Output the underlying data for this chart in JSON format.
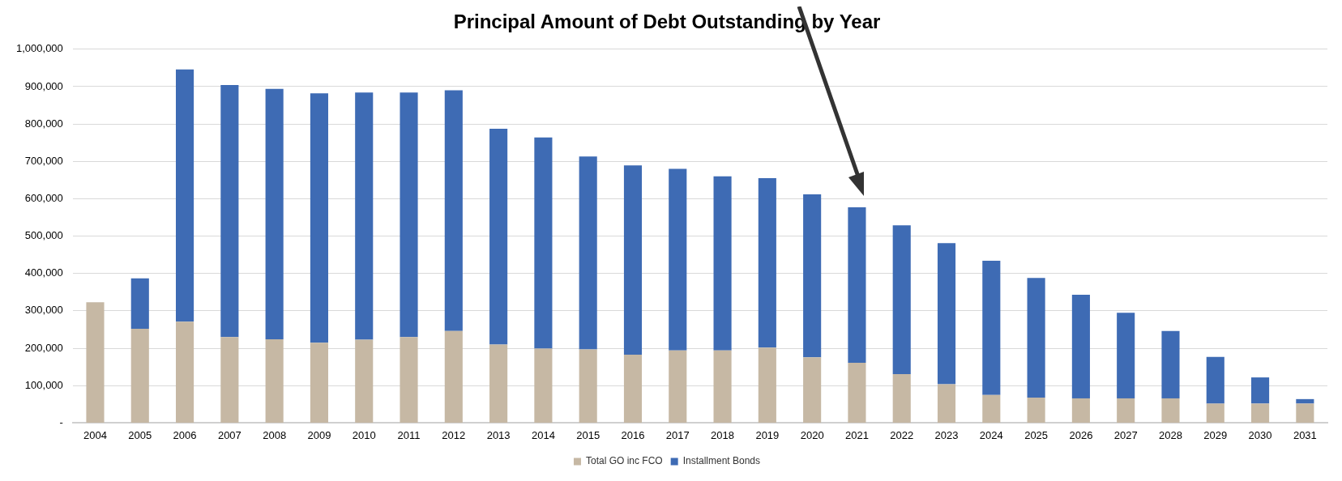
{
  "chart_data": {
    "type": "bar",
    "title": "Principal Amount of Debt Outstanding by Year",
    "categories": [
      "2004",
      "2005",
      "2006",
      "2007",
      "2008",
      "2009",
      "2010",
      "2011",
      "2012",
      "2013",
      "2014",
      "2015",
      "2016",
      "2017",
      "2018",
      "2019",
      "2020",
      "2021",
      "2022",
      "2023",
      "2024",
      "2025",
      "2026",
      "2027",
      "2028",
      "2029",
      "2030",
      "2031"
    ],
    "series": [
      {
        "name": "Total GO inc FCO",
        "color": "#c6b8a4",
        "values": [
          323000,
          252000,
          271000,
          230000,
          224000,
          215000,
          223000,
          230000,
          246000,
          210000,
          199000,
          197000,
          183000,
          194000,
          194000,
          202000,
          176000,
          161000,
          131000,
          104000,
          75000,
          68000,
          66000,
          66000,
          66000,
          52000,
          52000,
          52000
        ]
      },
      {
        "name": "Installment Bonds",
        "color": "#3e6bb4",
        "values": [
          0,
          135000,
          675000,
          674000,
          670000,
          667000,
          661000,
          654000,
          644000,
          577000,
          565000,
          516000,
          506000,
          486000,
          466000,
          453000,
          436000,
          416000,
          398000,
          377000,
          359000,
          320000,
          277000,
          229000,
          180000,
          125000,
          70000,
          12000
        ]
      }
    ],
    "stacked": true,
    "ylim": [
      0,
      1000000
    ],
    "yticks": [
      {
        "value": 0,
        "label": "-"
      },
      {
        "value": 100000,
        "label": "100,000"
      },
      {
        "value": 200000,
        "label": "200,000"
      },
      {
        "value": 300000,
        "label": "300,000"
      },
      {
        "value": 400000,
        "label": "400,000"
      },
      {
        "value": 500000,
        "label": "500,000"
      },
      {
        "value": 600000,
        "label": "600,000"
      },
      {
        "value": 700000,
        "label": "700,000"
      },
      {
        "value": 800000,
        "label": "800,000"
      },
      {
        "value": 900000,
        "label": "900,000"
      },
      {
        "value": 1000000,
        "label": "1,000,000"
      }
    ],
    "grid": "y",
    "legend": "bottom"
  }
}
